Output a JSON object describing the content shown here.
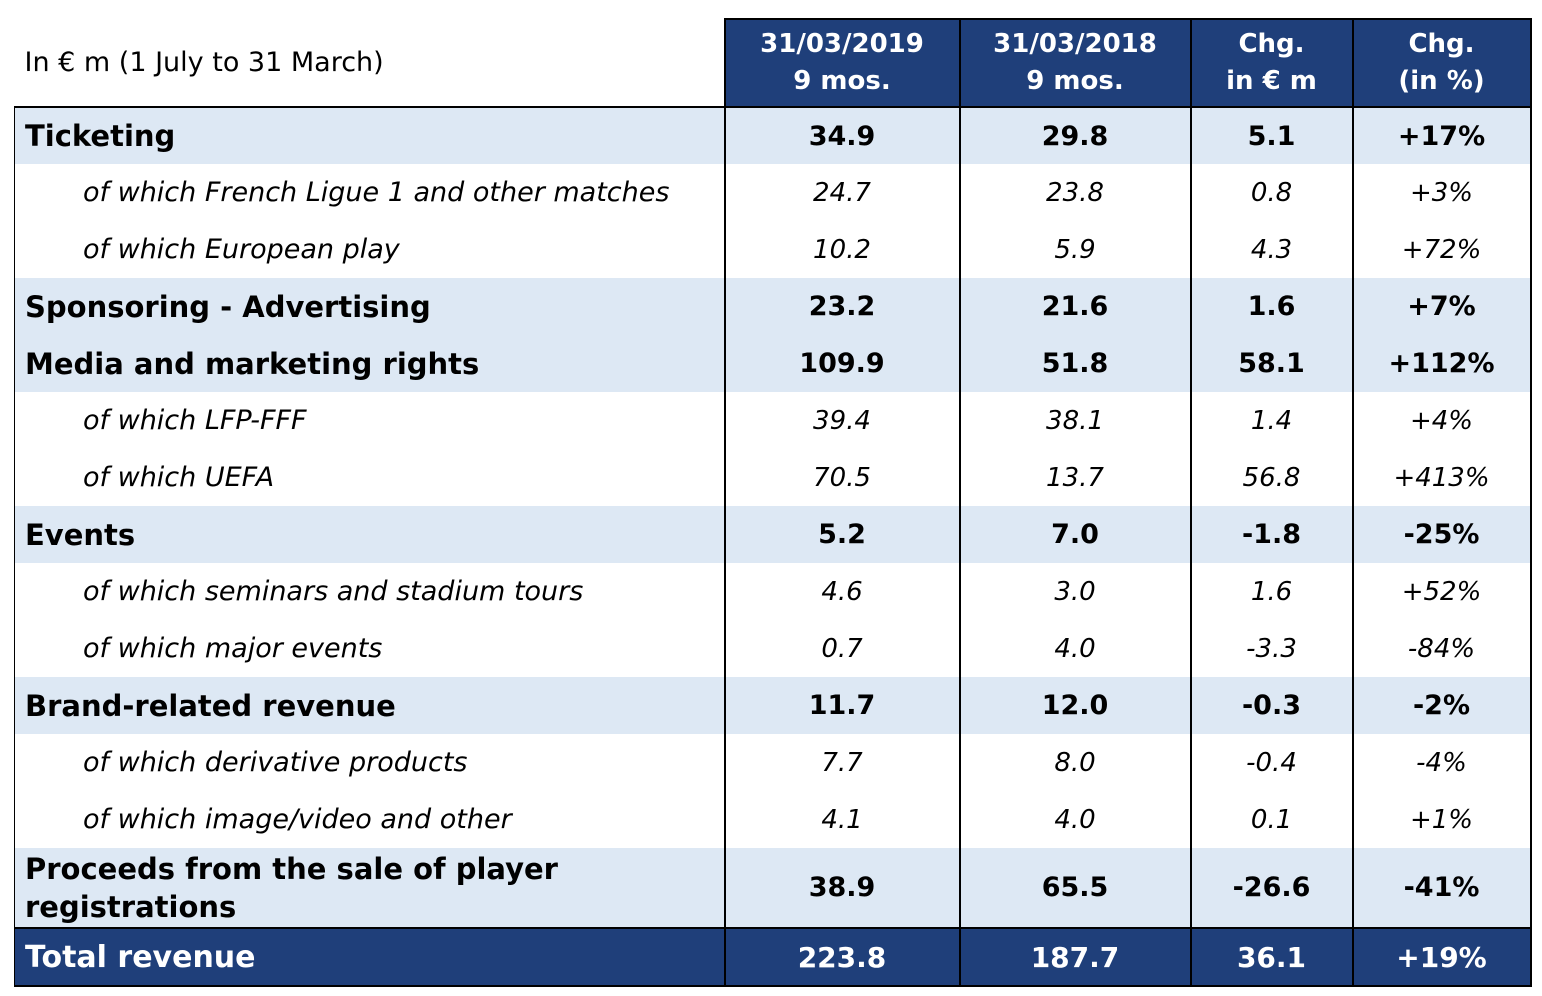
{
  "table": {
    "header_label": "In € m (1 July to 31 March)",
    "columns": [
      {
        "line1": "31/03/2019",
        "line2": "9 mos."
      },
      {
        "line1": "31/03/2018",
        "line2": "9 mos."
      },
      {
        "line1": "Chg.",
        "line2": "in € m"
      },
      {
        "line1": "Chg.",
        "line2": "(in %)"
      }
    ],
    "rows": [
      {
        "type": "main",
        "shaded": true,
        "label": "Ticketing",
        "v2019": "34.9",
        "v2018": "29.8",
        "chg_eur": "5.1",
        "chg_pct": "+17%"
      },
      {
        "type": "sub",
        "shaded": false,
        "label": "of which French Ligue 1 and other matches",
        "v2019": "24.7",
        "v2018": "23.8",
        "chg_eur": "0.8",
        "chg_pct": "+3%"
      },
      {
        "type": "sub",
        "shaded": false,
        "label": "of which European play",
        "v2019": "10.2",
        "v2018": "5.9",
        "chg_eur": "4.3",
        "chg_pct": "+72%"
      },
      {
        "type": "main",
        "shaded": true,
        "label": "Sponsoring - Advertising",
        "v2019": "23.2",
        "v2018": "21.6",
        "chg_eur": "1.6",
        "chg_pct": "+7%"
      },
      {
        "type": "main",
        "shaded": true,
        "label": "Media and marketing rights",
        "v2019": "109.9",
        "v2018": "51.8",
        "chg_eur": "58.1",
        "chg_pct": "+112%"
      },
      {
        "type": "sub",
        "shaded": false,
        "label": "of which LFP-FFF",
        "v2019": "39.4",
        "v2018": "38.1",
        "chg_eur": "1.4",
        "chg_pct": "+4%"
      },
      {
        "type": "sub",
        "shaded": false,
        "label": "of which UEFA",
        "v2019": "70.5",
        "v2018": "13.7",
        "chg_eur": "56.8",
        "chg_pct": "+413%"
      },
      {
        "type": "main",
        "shaded": true,
        "label": "Events",
        "v2019": "5.2",
        "v2018": "7.0",
        "chg_eur": "-1.8",
        "chg_pct": "-25%"
      },
      {
        "type": "sub",
        "shaded": false,
        "label": "of which seminars and stadium tours",
        "v2019": "4.6",
        "v2018": "3.0",
        "chg_eur": "1.6",
        "chg_pct": "+52%"
      },
      {
        "type": "sub",
        "shaded": false,
        "label": "of which major events",
        "v2019": "0.7",
        "v2018": "4.0",
        "chg_eur": "-3.3",
        "chg_pct": "-84%"
      },
      {
        "type": "main",
        "shaded": true,
        "label": "Brand-related revenue",
        "v2019": "11.7",
        "v2018": "12.0",
        "chg_eur": "-0.3",
        "chg_pct": "-2%"
      },
      {
        "type": "sub",
        "shaded": false,
        "label": "of which derivative products",
        "v2019": "7.7",
        "v2018": "8.0",
        "chg_eur": "-0.4",
        "chg_pct": "-4%"
      },
      {
        "type": "sub",
        "shaded": false,
        "label": "of which image/video and other",
        "v2019": "4.1",
        "v2018": "4.0",
        "chg_eur": "0.1",
        "chg_pct": "+1%"
      },
      {
        "type": "tall",
        "shaded": true,
        "label": "Proceeds from the sale of player registrations",
        "v2019": "38.9",
        "v2018": "65.5",
        "chg_eur": "-26.6",
        "chg_pct": "-41%"
      },
      {
        "type": "total",
        "shaded": false,
        "label": "Total revenue",
        "v2019": "223.8",
        "v2018": "187.7",
        "chg_eur": "36.1",
        "chg_pct": "+19%"
      }
    ],
    "colors": {
      "header_bg": "#1f3f7a",
      "shade_bg": "#dde8f4",
      "header_text": "#ffffff"
    }
  }
}
